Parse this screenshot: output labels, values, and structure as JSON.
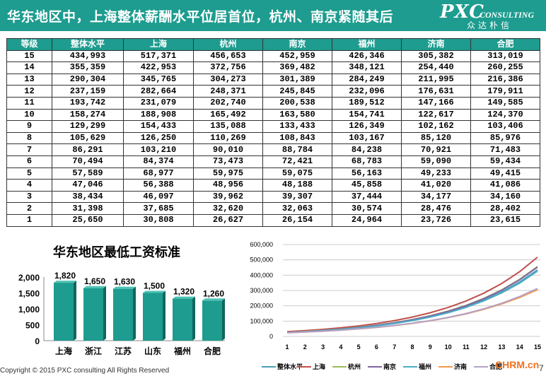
{
  "header": {
    "title": "华东地区中，上海整体薪酬水平位居首位，杭州、南京紧随其后",
    "logo_main": "PXC",
    "logo_sub": "CONSULTING",
    "logo_cn": "众达朴信",
    "bg_color": "#1d9c8f"
  },
  "table": {
    "columns": [
      "等级",
      "整体水平",
      "上海",
      "杭州",
      "南京",
      "福州",
      "济南",
      "合肥"
    ],
    "rows": [
      [
        "15",
        "434,993",
        "517,371",
        "456,653",
        "452,959",
        "426,346",
        "305,382",
        "313,019"
      ],
      [
        "14",
        "355,359",
        "422,953",
        "372,756",
        "369,482",
        "348,121",
        "254,440",
        "260,255"
      ],
      [
        "13",
        "290,304",
        "345,765",
        "304,273",
        "301,389",
        "284,249",
        "211,995",
        "216,386"
      ],
      [
        "12",
        "237,159",
        "282,664",
        "248,371",
        "245,845",
        "232,096",
        "176,631",
        "179,911"
      ],
      [
        "11",
        "193,742",
        "231,079",
        "202,740",
        "200,538",
        "189,512",
        "147,166",
        "149,585"
      ],
      [
        "10",
        "158,274",
        "188,908",
        "165,492",
        "163,580",
        "154,741",
        "122,617",
        "124,370"
      ],
      [
        "9",
        "129,299",
        "154,433",
        "135,088",
        "133,433",
        "126,349",
        "102,162",
        "103,406"
      ],
      [
        "8",
        "105,629",
        "126,250",
        "110,269",
        "108,843",
        "103,167",
        "85,120",
        "85,976"
      ],
      [
        "7",
        "86,291",
        "103,210",
        "90,010",
        "88,784",
        "84,238",
        "70,921",
        "71,483"
      ],
      [
        "6",
        "70,494",
        "84,374",
        "73,473",
        "72,421",
        "68,783",
        "59,090",
        "59,434"
      ],
      [
        "5",
        "57,589",
        "68,977",
        "59,975",
        "59,075",
        "56,163",
        "49,233",
        "49,415"
      ],
      [
        "4",
        "47,046",
        "56,388",
        "48,956",
        "48,188",
        "45,858",
        "41,020",
        "41,086"
      ],
      [
        "3",
        "38,434",
        "46,097",
        "39,962",
        "39,307",
        "37,444",
        "34,177",
        "34,160"
      ],
      [
        "2",
        "31,398",
        "37,685",
        "32,620",
        "32,063",
        "30,574",
        "28,476",
        "28,402"
      ],
      [
        "1",
        "25,650",
        "30,808",
        "26,627",
        "26,154",
        "24,964",
        "23,726",
        "23,615"
      ]
    ]
  },
  "chart_data": [
    {
      "type": "bar",
      "title": "华东地区最低工资标准",
      "categories": [
        "上海",
        "浙江",
        "江苏",
        "山东",
        "福州",
        "合肥"
      ],
      "values": [
        1820,
        1650,
        1630,
        1500,
        1320,
        1260
      ],
      "data_labels": [
        "1,820",
        "1,650",
        "1,630",
        "1,500",
        "1,320",
        "1,260"
      ],
      "ylim": [
        0,
        2000
      ],
      "y_ticks": [
        "0",
        "500",
        "1,000",
        "1,500",
        "2,000"
      ],
      "bar_color": "#1d9c8f",
      "grid": false
    },
    {
      "type": "line",
      "x": [
        1,
        2,
        3,
        4,
        5,
        6,
        7,
        8,
        9,
        10,
        11,
        12,
        13,
        14,
        15
      ],
      "x_ticks": [
        "1",
        "2",
        "3",
        "4",
        "5",
        "6",
        "7",
        "8",
        "9",
        "10",
        "11",
        "12",
        "13",
        "14",
        "15"
      ],
      "ylim": [
        0,
        600000
      ],
      "y_ticks": [
        "0",
        "100,000",
        "200,000",
        "300,000",
        "400,000",
        "500,000",
        "600,000"
      ],
      "grid": true,
      "legend_position": "bottom",
      "series": [
        {
          "name": "整体水平",
          "color": "#4a9fb5",
          "values": [
            25650,
            31398,
            38434,
            47046,
            57589,
            70494,
            86291,
            105629,
            129299,
            158274,
            193742,
            237159,
            290304,
            355359,
            434993
          ]
        },
        {
          "name": "上海",
          "color": "#c0504d",
          "values": [
            30808,
            37685,
            46097,
            56388,
            68977,
            84374,
            103210,
            126250,
            154433,
            188908,
            231079,
            282664,
            345765,
            422953,
            517371
          ]
        },
        {
          "name": "杭州",
          "color": "#9bbb59",
          "values": [
            26627,
            32620,
            39962,
            48956,
            59975,
            73473,
            90010,
            110269,
            135088,
            165492,
            202740,
            248371,
            304273,
            372756,
            456653
          ]
        },
        {
          "name": "南京",
          "color": "#8064a2",
          "values": [
            26154,
            32063,
            39307,
            48188,
            59075,
            72421,
            88784,
            108843,
            133433,
            163580,
            200538,
            245845,
            301389,
            369482,
            452959
          ]
        },
        {
          "name": "福州",
          "color": "#4bacc6",
          "values": [
            24964,
            30574,
            37444,
            45858,
            56163,
            68783,
            84238,
            103167,
            126349,
            154741,
            189512,
            232096,
            284249,
            348121,
            426346
          ]
        },
        {
          "name": "济南",
          "color": "#f79646",
          "values": [
            23726,
            28476,
            34177,
            41020,
            49233,
            59090,
            70921,
            85120,
            102162,
            122617,
            147166,
            176631,
            211995,
            254440,
            305382
          ]
        },
        {
          "name": "合肥",
          "color": "#b3a2c7",
          "values": [
            23615,
            28402,
            34160,
            41086,
            49415,
            59434,
            71483,
            85976,
            103406,
            124370,
            149585,
            179911,
            216386,
            260255,
            313019
          ]
        }
      ]
    }
  ],
  "footer": {
    "copyright": "Copyright © 2015 PXC consulting All Rights Reserved",
    "page": "7",
    "watermark": "CHRM.cn"
  }
}
